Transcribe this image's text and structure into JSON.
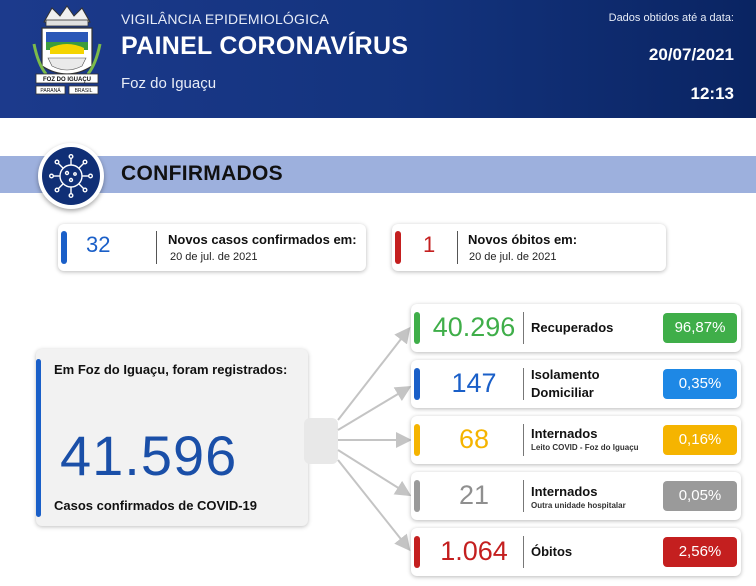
{
  "header": {
    "subtitle": "VIGILÂNCIA EPIDEMIOLÓGICA",
    "title": "PAINEL CORONAVÍRUS",
    "city": "Foz do Iguaçu",
    "data_label": "Dados obtidos até a data:",
    "date": "20/07/2021",
    "time": "12:13",
    "crest": {
      "name": "FOZ DO IGUAÇU",
      "left": "PARANÁ",
      "right": "BRASIL"
    }
  },
  "section": {
    "title": "CONFIRMADOS",
    "icon": "virus-icon"
  },
  "new_cases": {
    "value": "32",
    "label": "Novos casos confirmados em:",
    "date": "20 de jul. de 2021",
    "color": "#1a5fc8"
  },
  "new_deaths": {
    "value": "1",
    "label": "Novos óbitos em:",
    "date": "20 de jul. de 2021",
    "color": "#c41f1f"
  },
  "total": {
    "heading": "Em Foz do Iguaçu, foram registrados:",
    "value": "41.596",
    "caption": "Casos confirmados de COVID-19",
    "color": "#1a5fc8"
  },
  "breakdown": [
    {
      "value": "40.296",
      "label": "Recuperados",
      "sublabel": "",
      "percent": "96,87%",
      "color": "#3fae49",
      "num_color": "#3fae49"
    },
    {
      "value": "147",
      "label": "Isolamento Domiciliar",
      "sublabel": "",
      "percent": "0,35%",
      "color": "#1e88e5",
      "num_color": "#1a5fc8"
    },
    {
      "value": "68",
      "label": "Internados",
      "sublabel": "Leito COVID - Foz do Iguaçu",
      "percent": "0,16%",
      "color": "#f5b400",
      "num_color": "#f5b400"
    },
    {
      "value": "21",
      "label": "Internados",
      "sublabel": "Outra unidade hospitalar",
      "percent": "0,05%",
      "color": "#9a9a9a",
      "num_color": "#8f8f8f"
    },
    {
      "value": "1.064",
      "label": "Óbitos",
      "sublabel": "",
      "percent": "2,56%",
      "color": "#c41f1f",
      "num_color": "#c41f1f"
    }
  ]
}
